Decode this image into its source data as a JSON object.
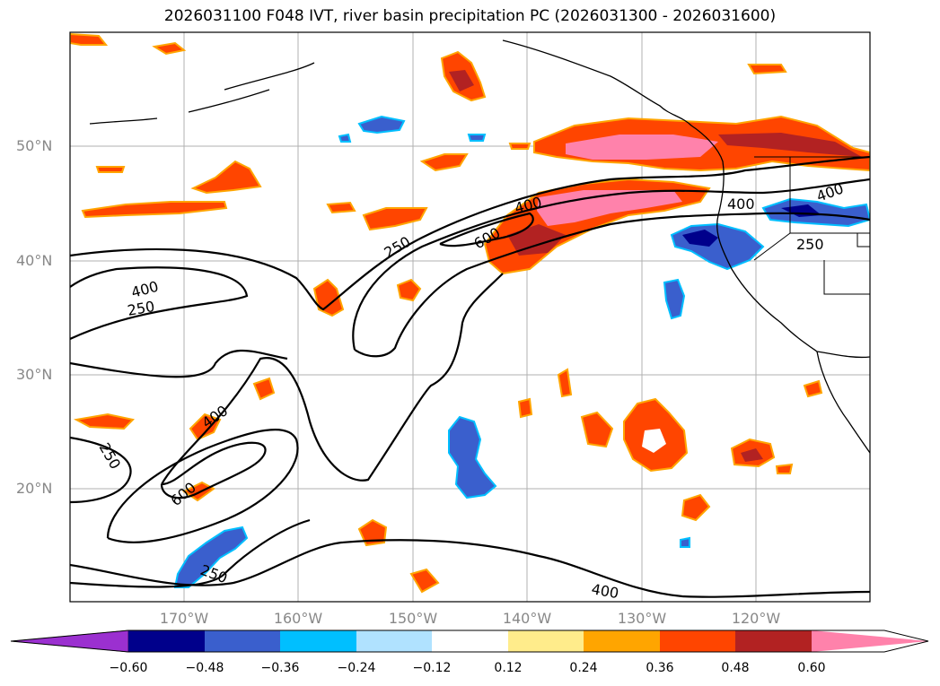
{
  "title": "2026031100 F048 IVT, river basin precipitation PC (2026031300 - 2026031600)",
  "map": {
    "lat_labels": [
      "50°N",
      "40°N",
      "30°N",
      "20°N"
    ],
    "lon_labels": [
      "170°W",
      "160°W",
      "150°W",
      "140°W",
      "130°W",
      "120°W"
    ],
    "contour_labels": [
      "400",
      "250",
      "400",
      "250",
      "400",
      "600",
      "400",
      "400",
      "250",
      "250",
      "250",
      "400",
      "600",
      "250",
      "400"
    ]
  },
  "colorbar": {
    "ticks": [
      "−0.60",
      "−0.48",
      "−0.36",
      "−0.24",
      "−0.12",
      "0.12",
      "0.24",
      "0.36",
      "0.48",
      "0.60"
    ],
    "colors": [
      "#9b30d0",
      "#00008b",
      "#3a5fcd",
      "#00bfff",
      "#b0e2ff",
      "#ffffff",
      "#ffec8b",
      "#ffa500",
      "#ff4500",
      "#b22222",
      "#ff82ab"
    ]
  }
}
